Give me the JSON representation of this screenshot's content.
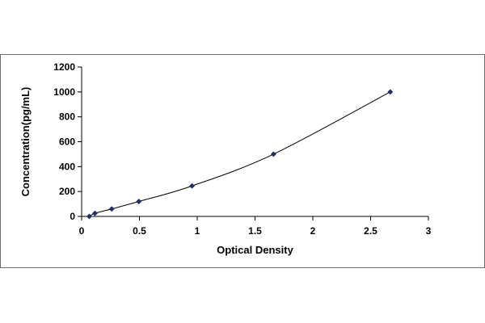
{
  "chart_data": {
    "type": "scatter",
    "title": "",
    "xlabel": "Optical Density",
    "ylabel": "Concentration(pg/mL)",
    "xlim": [
      0,
      3
    ],
    "ylim": [
      0,
      1200
    ],
    "x_ticks": [
      "0",
      "0.5",
      "1",
      "1.5",
      "2",
      "2.5",
      "3"
    ],
    "y_ticks": [
      "0",
      "200",
      "400",
      "600",
      "800",
      "1000",
      "1200"
    ],
    "grid": false,
    "legend": "none",
    "marker": "diamond",
    "marker_color": "#1f2d6b",
    "line_color": "#000000",
    "smooth_line": true,
    "series": [
      {
        "x": [
          0.066,
          0.115,
          0.26,
          0.495,
          0.955,
          1.66,
          2.67
        ],
        "y": [
          0,
          25,
          60,
          120,
          245,
          500,
          1000
        ]
      }
    ]
  }
}
